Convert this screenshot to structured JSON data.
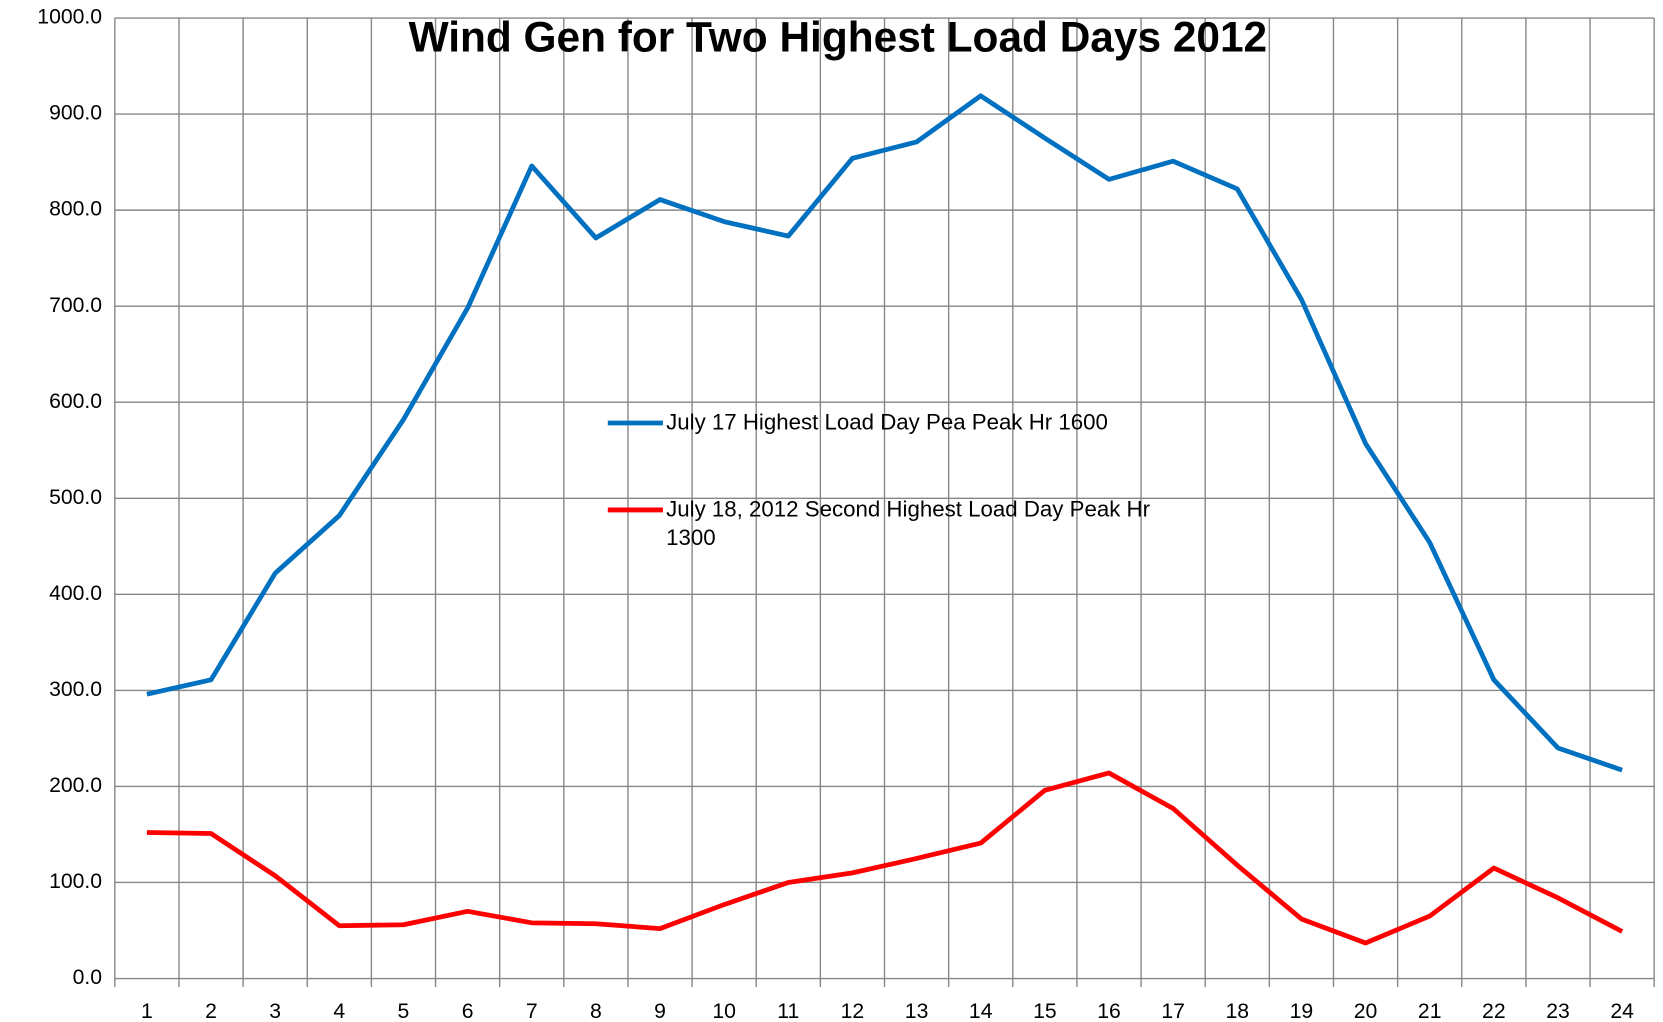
{
  "chart_data": {
    "type": "line",
    "title": "Wind Gen for Two Highest Load Days 2012",
    "categories": [
      "1",
      "2",
      "3",
      "4",
      "5",
      "6",
      "7",
      "8",
      "9",
      "10",
      "11",
      "12",
      "13",
      "14",
      "15",
      "16",
      "17",
      "18",
      "19",
      "20",
      "21",
      "22",
      "23",
      "24"
    ],
    "series": [
      {
        "name": "July 17 Highest Load Day Pea Peak Hr 1600",
        "color": "#0070c0",
        "values": [
          296,
          311,
          422,
          482,
          582,
          698,
          846,
          771,
          811,
          788,
          773,
          854,
          871,
          919,
          875,
          832,
          851,
          822,
          707,
          557,
          454,
          311,
          240,
          217
        ]
      },
      {
        "name": "July 18, 2012 Second Highest Load Day Peak Hr 1300",
        "color": "#ff0000",
        "values": [
          152,
          151,
          107,
          55,
          56,
          70,
          58,
          57,
          52,
          77,
          100,
          110,
          125,
          141,
          196,
          214,
          177,
          118,
          62,
          37,
          65,
          115,
          84,
          49
        ]
      }
    ],
    "ylim": [
      0,
      1000
    ],
    "yticks": [
      {
        "value": 0,
        "label": "0.0"
      },
      {
        "value": 100,
        "label": "100.0"
      },
      {
        "value": 200,
        "label": "200.0"
      },
      {
        "value": 300,
        "label": "300.0"
      },
      {
        "value": 400,
        "label": "400.0"
      },
      {
        "value": 500,
        "label": "500.0"
      },
      {
        "value": 600,
        "label": "600.0"
      },
      {
        "value": 700,
        "label": "700.0"
      },
      {
        "value": 800,
        "label": "800.0"
      },
      {
        "value": 900,
        "label": "900.0"
      },
      {
        "value": 1000,
        "label": "1000.0"
      }
    ],
    "grid": true
  }
}
